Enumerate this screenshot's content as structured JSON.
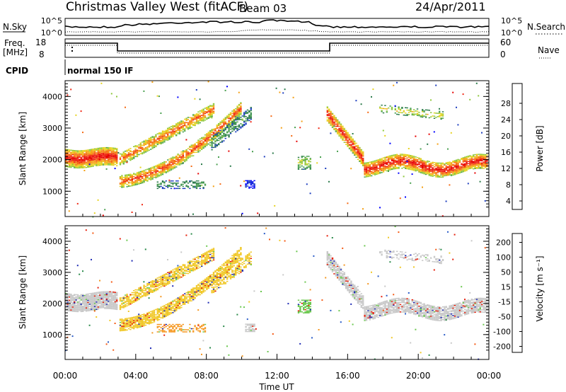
{
  "header": {
    "title": "Christmas Valley West (fitACF)",
    "beam": "Beam 03",
    "date": "24/Apr/2011"
  },
  "noise_panel": {
    "left_label": "N.Sky",
    "right_label": "N.Search",
    "left_ticks": [
      "10^5",
      "10^0"
    ],
    "right_ticks": [
      "10^5",
      "10^0"
    ]
  },
  "freq_panel": {
    "left_label_1": "Freq.",
    "left_label_2": "[MHz]",
    "right_label": "Nave",
    "left_ticks": [
      "18",
      "8"
    ],
    "right_ticks": [
      "60",
      "0"
    ]
  },
  "cpid": {
    "label": "CPID",
    "value": "normal 150 IF"
  },
  "chart_data": [
    {
      "type": "heatmap",
      "name": "power",
      "ylabel": "Slant Range [km]",
      "ylim": [
        200,
        4500
      ],
      "yticks": [
        "4000",
        "3000",
        "2000",
        "1000"
      ],
      "colorbar": {
        "label": "Power [dB]",
        "ticks": [
          "28",
          "24",
          "20",
          "16",
          "12",
          "8",
          "4"
        ],
        "range": [
          0,
          32
        ],
        "colors": [
          "#0000ff",
          "#1f3fbf",
          "#2a7a4a",
          "#4aa050",
          "#8ec83c",
          "#e6d21e",
          "#f5a014",
          "#f56a14",
          "#f02814",
          "#e60000"
        ]
      }
    },
    {
      "type": "heatmap",
      "name": "velocity",
      "ylabel": "Velocity [m s⁻¹]",
      "panel_ylabel": "Slant Range [km]",
      "ylim": [
        200,
        4500
      ],
      "yticks": [
        "4000",
        "3000",
        "2000",
        "1000"
      ],
      "colorbar": {
        "label": "Velocity [m s⁻¹]",
        "ticks": [
          "200",
          "100",
          "50",
          "15",
          "-15",
          "-50",
          "-100",
          "-200"
        ],
        "colors": [
          "#1e2ab4",
          "#2a5cc8",
          "#2a8a4a",
          "#6cc850",
          "#c8c8c8",
          "#f0c828",
          "#f5961e",
          "#f55a14",
          "#e61e0a"
        ]
      }
    }
  ],
  "time_axis": {
    "xlabel": "Time UT",
    "ticks": [
      "00:00",
      "04:00",
      "08:00",
      "12:00",
      "16:00",
      "20:00",
      "00:00"
    ]
  }
}
